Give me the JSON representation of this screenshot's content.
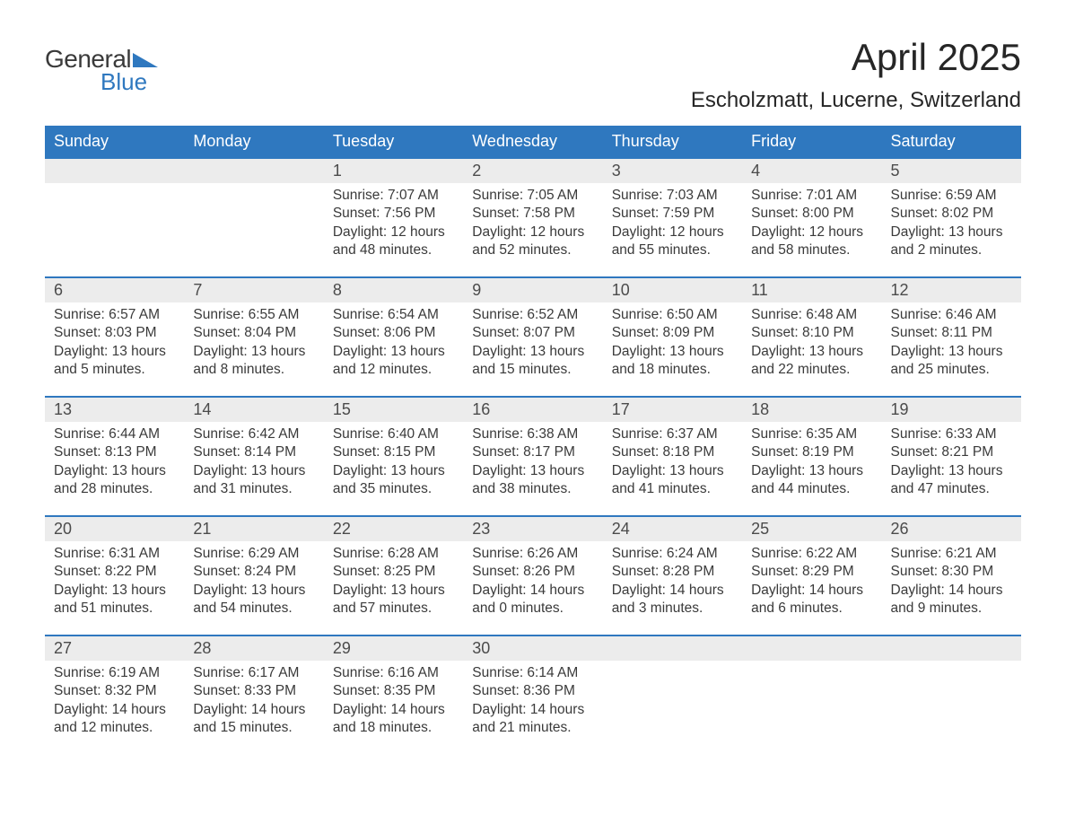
{
  "logo": {
    "text1": "General",
    "text2": "Blue",
    "accent_color": "#2f78bf"
  },
  "title": "April 2025",
  "location": "Escholzmatt, Lucerne, Switzerland",
  "colors": {
    "header_bg": "#2f78bf",
    "header_text": "#ffffff",
    "daynum_bg": "#ececec",
    "text": "#3a3a3a",
    "background": "#ffffff"
  },
  "day_names": [
    "Sunday",
    "Monday",
    "Tuesday",
    "Wednesday",
    "Thursday",
    "Friday",
    "Saturday"
  ],
  "weeks": [
    [
      {
        "n": "",
        "sr": "",
        "ss": "",
        "dl": ""
      },
      {
        "n": "",
        "sr": "",
        "ss": "",
        "dl": ""
      },
      {
        "n": "1",
        "sr": "Sunrise: 7:07 AM",
        "ss": "Sunset: 7:56 PM",
        "dl": "Daylight: 12 hours and 48 minutes."
      },
      {
        "n": "2",
        "sr": "Sunrise: 7:05 AM",
        "ss": "Sunset: 7:58 PM",
        "dl": "Daylight: 12 hours and 52 minutes."
      },
      {
        "n": "3",
        "sr": "Sunrise: 7:03 AM",
        "ss": "Sunset: 7:59 PM",
        "dl": "Daylight: 12 hours and 55 minutes."
      },
      {
        "n": "4",
        "sr": "Sunrise: 7:01 AM",
        "ss": "Sunset: 8:00 PM",
        "dl": "Daylight: 12 hours and 58 minutes."
      },
      {
        "n": "5",
        "sr": "Sunrise: 6:59 AM",
        "ss": "Sunset: 8:02 PM",
        "dl": "Daylight: 13 hours and 2 minutes."
      }
    ],
    [
      {
        "n": "6",
        "sr": "Sunrise: 6:57 AM",
        "ss": "Sunset: 8:03 PM",
        "dl": "Daylight: 13 hours and 5 minutes."
      },
      {
        "n": "7",
        "sr": "Sunrise: 6:55 AM",
        "ss": "Sunset: 8:04 PM",
        "dl": "Daylight: 13 hours and 8 minutes."
      },
      {
        "n": "8",
        "sr": "Sunrise: 6:54 AM",
        "ss": "Sunset: 8:06 PM",
        "dl": "Daylight: 13 hours and 12 minutes."
      },
      {
        "n": "9",
        "sr": "Sunrise: 6:52 AM",
        "ss": "Sunset: 8:07 PM",
        "dl": "Daylight: 13 hours and 15 minutes."
      },
      {
        "n": "10",
        "sr": "Sunrise: 6:50 AM",
        "ss": "Sunset: 8:09 PM",
        "dl": "Daylight: 13 hours and 18 minutes."
      },
      {
        "n": "11",
        "sr": "Sunrise: 6:48 AM",
        "ss": "Sunset: 8:10 PM",
        "dl": "Daylight: 13 hours and 22 minutes."
      },
      {
        "n": "12",
        "sr": "Sunrise: 6:46 AM",
        "ss": "Sunset: 8:11 PM",
        "dl": "Daylight: 13 hours and 25 minutes."
      }
    ],
    [
      {
        "n": "13",
        "sr": "Sunrise: 6:44 AM",
        "ss": "Sunset: 8:13 PM",
        "dl": "Daylight: 13 hours and 28 minutes."
      },
      {
        "n": "14",
        "sr": "Sunrise: 6:42 AM",
        "ss": "Sunset: 8:14 PM",
        "dl": "Daylight: 13 hours and 31 minutes."
      },
      {
        "n": "15",
        "sr": "Sunrise: 6:40 AM",
        "ss": "Sunset: 8:15 PM",
        "dl": "Daylight: 13 hours and 35 minutes."
      },
      {
        "n": "16",
        "sr": "Sunrise: 6:38 AM",
        "ss": "Sunset: 8:17 PM",
        "dl": "Daylight: 13 hours and 38 minutes."
      },
      {
        "n": "17",
        "sr": "Sunrise: 6:37 AM",
        "ss": "Sunset: 8:18 PM",
        "dl": "Daylight: 13 hours and 41 minutes."
      },
      {
        "n": "18",
        "sr": "Sunrise: 6:35 AM",
        "ss": "Sunset: 8:19 PM",
        "dl": "Daylight: 13 hours and 44 minutes."
      },
      {
        "n": "19",
        "sr": "Sunrise: 6:33 AM",
        "ss": "Sunset: 8:21 PM",
        "dl": "Daylight: 13 hours and 47 minutes."
      }
    ],
    [
      {
        "n": "20",
        "sr": "Sunrise: 6:31 AM",
        "ss": "Sunset: 8:22 PM",
        "dl": "Daylight: 13 hours and 51 minutes."
      },
      {
        "n": "21",
        "sr": "Sunrise: 6:29 AM",
        "ss": "Sunset: 8:24 PM",
        "dl": "Daylight: 13 hours and 54 minutes."
      },
      {
        "n": "22",
        "sr": "Sunrise: 6:28 AM",
        "ss": "Sunset: 8:25 PM",
        "dl": "Daylight: 13 hours and 57 minutes."
      },
      {
        "n": "23",
        "sr": "Sunrise: 6:26 AM",
        "ss": "Sunset: 8:26 PM",
        "dl": "Daylight: 14 hours and 0 minutes."
      },
      {
        "n": "24",
        "sr": "Sunrise: 6:24 AM",
        "ss": "Sunset: 8:28 PM",
        "dl": "Daylight: 14 hours and 3 minutes."
      },
      {
        "n": "25",
        "sr": "Sunrise: 6:22 AM",
        "ss": "Sunset: 8:29 PM",
        "dl": "Daylight: 14 hours and 6 minutes."
      },
      {
        "n": "26",
        "sr": "Sunrise: 6:21 AM",
        "ss": "Sunset: 8:30 PM",
        "dl": "Daylight: 14 hours and 9 minutes."
      }
    ],
    [
      {
        "n": "27",
        "sr": "Sunrise: 6:19 AM",
        "ss": "Sunset: 8:32 PM",
        "dl": "Daylight: 14 hours and 12 minutes."
      },
      {
        "n": "28",
        "sr": "Sunrise: 6:17 AM",
        "ss": "Sunset: 8:33 PM",
        "dl": "Daylight: 14 hours and 15 minutes."
      },
      {
        "n": "29",
        "sr": "Sunrise: 6:16 AM",
        "ss": "Sunset: 8:35 PM",
        "dl": "Daylight: 14 hours and 18 minutes."
      },
      {
        "n": "30",
        "sr": "Sunrise: 6:14 AM",
        "ss": "Sunset: 8:36 PM",
        "dl": "Daylight: 14 hours and 21 minutes."
      },
      {
        "n": "",
        "sr": "",
        "ss": "",
        "dl": ""
      },
      {
        "n": "",
        "sr": "",
        "ss": "",
        "dl": ""
      },
      {
        "n": "",
        "sr": "",
        "ss": "",
        "dl": ""
      }
    ]
  ]
}
